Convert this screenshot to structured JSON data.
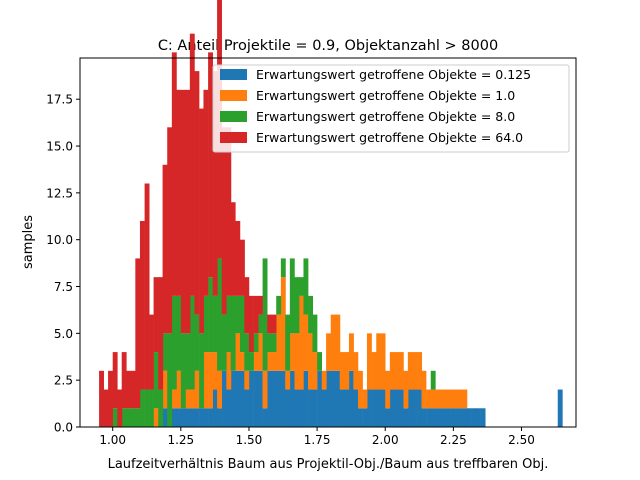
{
  "chart_data": {
    "type": "bar",
    "title": "C: Anteil Projektile = 0.9, Objektanzahl > 8000",
    "xlabel": "Laufzeitverhältnis Baum aus Projektil-Obj./Baum aus treffbaren Obj.",
    "ylabel": "samples",
    "xlim": [
      0.88,
      2.7
    ],
    "ylim": [
      0,
      19.7
    ],
    "xticks": [
      1.0,
      1.25,
      1.5,
      1.75,
      2.0,
      2.25,
      2.5
    ],
    "xtick_labels": [
      "1.00",
      "1.25",
      "1.50",
      "1.75",
      "2.00",
      "2.25",
      "2.50"
    ],
    "yticks": [
      0.0,
      2.5,
      5.0,
      7.5,
      10.0,
      12.5,
      15.0,
      17.5
    ],
    "ytick_labels": [
      "0.0",
      "2.5",
      "5.0",
      "7.5",
      "10.0",
      "12.5",
      "15.0",
      "17.5"
    ],
    "legend_position": "top-right",
    "stacked": true,
    "bin_width": 0.0167,
    "series": [
      {
        "name": "Erwartungswert getroffene Objekte = 0.125",
        "color": "#1f77b4",
        "bins": [
          [
            1.183,
            1
          ],
          [
            1.217,
            1
          ],
          [
            1.233,
            1
          ],
          [
            1.25,
            1
          ],
          [
            1.267,
            1
          ],
          [
            1.283,
            1
          ],
          [
            1.3,
            1
          ],
          [
            1.317,
            1
          ],
          [
            1.333,
            1
          ],
          [
            1.35,
            1
          ],
          [
            1.367,
            2
          ],
          [
            1.383,
            1
          ],
          [
            1.4,
            3
          ],
          [
            1.417,
            2
          ],
          [
            1.433,
            3
          ],
          [
            1.45,
            3
          ],
          [
            1.467,
            3
          ],
          [
            1.483,
            2
          ],
          [
            1.5,
            3
          ],
          [
            1.517,
            3
          ],
          [
            1.533,
            3
          ],
          [
            1.55,
            1
          ],
          [
            1.567,
            3
          ],
          [
            1.583,
            3
          ],
          [
            1.6,
            3
          ],
          [
            1.617,
            3
          ],
          [
            1.633,
            2
          ],
          [
            1.65,
            3
          ],
          [
            1.667,
            2
          ],
          [
            1.683,
            2
          ],
          [
            1.7,
            3
          ],
          [
            1.717,
            2
          ],
          [
            1.733,
            2
          ],
          [
            1.75,
            3
          ],
          [
            1.767,
            2
          ],
          [
            1.783,
            3
          ],
          [
            1.8,
            3
          ],
          [
            1.817,
            3
          ],
          [
            1.833,
            2
          ],
          [
            1.85,
            2
          ],
          [
            1.867,
            3
          ],
          [
            1.883,
            2
          ],
          [
            1.9,
            1
          ],
          [
            1.917,
            1
          ],
          [
            1.933,
            2
          ],
          [
            1.95,
            2
          ],
          [
            1.967,
            2
          ],
          [
            1.983,
            2
          ],
          [
            2.0,
            1
          ],
          [
            2.017,
            2
          ],
          [
            2.033,
            2
          ],
          [
            2.05,
            2
          ],
          [
            2.067,
            1
          ],
          [
            2.083,
            2
          ],
          [
            2.1,
            2
          ],
          [
            2.117,
            2
          ],
          [
            2.133,
            1
          ],
          [
            2.15,
            1
          ],
          [
            2.167,
            1
          ],
          [
            2.183,
            1
          ],
          [
            2.2,
            1
          ],
          [
            2.217,
            1
          ],
          [
            2.233,
            1
          ],
          [
            2.25,
            1
          ],
          [
            2.267,
            1
          ],
          [
            2.283,
            1
          ],
          [
            2.3,
            1
          ],
          [
            2.317,
            1
          ],
          [
            2.333,
            1
          ],
          [
            2.35,
            1
          ],
          [
            2.633,
            2
          ]
        ]
      },
      {
        "name": "Erwartungswert getroffene Objekte = 1.0",
        "color": "#ff7f0e",
        "bins": [
          [
            1.15,
            1
          ],
          [
            1.183,
            2
          ],
          [
            1.217,
            1
          ],
          [
            1.233,
            2
          ],
          [
            1.267,
            1
          ],
          [
            1.283,
            1
          ],
          [
            1.3,
            2
          ],
          [
            1.333,
            3
          ],
          [
            1.35,
            3
          ],
          [
            1.367,
            2
          ],
          [
            1.383,
            2
          ],
          [
            1.417,
            2
          ],
          [
            1.45,
            2
          ],
          [
            1.467,
            1
          ],
          [
            1.483,
            1
          ],
          [
            1.517,
            1
          ],
          [
            1.533,
            2
          ],
          [
            1.55,
            2
          ],
          [
            1.567,
            1
          ],
          [
            1.583,
            1
          ],
          [
            1.6,
            3
          ],
          [
            1.617,
            5
          ],
          [
            1.633,
            1
          ],
          [
            1.65,
            2
          ],
          [
            1.667,
            3
          ],
          [
            1.683,
            5
          ],
          [
            1.7,
            3
          ],
          [
            1.717,
            3
          ],
          [
            1.733,
            2
          ],
          [
            1.767,
            1
          ],
          [
            1.783,
            2
          ],
          [
            1.8,
            3
          ],
          [
            1.817,
            3
          ],
          [
            1.833,
            2
          ],
          [
            1.85,
            2
          ],
          [
            1.867,
            2
          ],
          [
            1.883,
            2
          ],
          [
            1.9,
            2
          ],
          [
            1.917,
            1
          ],
          [
            1.933,
            3
          ],
          [
            1.95,
            2
          ],
          [
            1.967,
            3
          ],
          [
            1.983,
            3
          ],
          [
            2.0,
            2
          ],
          [
            2.017,
            2
          ],
          [
            2.033,
            2
          ],
          [
            2.05,
            2
          ],
          [
            2.067,
            2
          ],
          [
            2.083,
            2
          ],
          [
            2.1,
            2
          ],
          [
            2.117,
            2
          ],
          [
            2.133,
            2
          ],
          [
            2.15,
            1
          ],
          [
            2.167,
            1
          ],
          [
            2.183,
            1
          ],
          [
            2.2,
            1
          ],
          [
            2.217,
            1
          ],
          [
            2.233,
            1
          ],
          [
            2.25,
            1
          ],
          [
            2.267,
            1
          ],
          [
            2.283,
            1
          ]
        ]
      },
      {
        "name": "Erwartungswert getroffene Objekte = 8.0",
        "color": "#2ca02c",
        "bins": [
          [
            1.0,
            1
          ],
          [
            1.033,
            1
          ],
          [
            1.05,
            1
          ],
          [
            1.067,
            1
          ],
          [
            1.083,
            1
          ],
          [
            1.1,
            2
          ],
          [
            1.117,
            2
          ],
          [
            1.133,
            2
          ],
          [
            1.15,
            3
          ],
          [
            1.167,
            2
          ],
          [
            1.183,
            2
          ],
          [
            1.2,
            5
          ],
          [
            1.217,
            5
          ],
          [
            1.233,
            4
          ],
          [
            1.25,
            4
          ],
          [
            1.267,
            3
          ],
          [
            1.283,
            5
          ],
          [
            1.3,
            3
          ],
          [
            1.317,
            4
          ],
          [
            1.333,
            3
          ],
          [
            1.35,
            4
          ],
          [
            1.367,
            3
          ],
          [
            1.383,
            6
          ],
          [
            1.4,
            3
          ],
          [
            1.417,
            3
          ],
          [
            1.433,
            4
          ],
          [
            1.45,
            2
          ],
          [
            1.467,
            3
          ],
          [
            1.483,
            2
          ],
          [
            1.5,
            1
          ],
          [
            1.517,
            1
          ],
          [
            1.533,
            1
          ],
          [
            1.55,
            6
          ],
          [
            1.567,
            1
          ],
          [
            1.583,
            1
          ],
          [
            1.6,
            1
          ],
          [
            1.617,
            1
          ],
          [
            1.633,
            3
          ],
          [
            1.65,
            4
          ],
          [
            1.667,
            3
          ],
          [
            1.683,
            1
          ],
          [
            1.7,
            3
          ],
          [
            1.717,
            2
          ],
          [
            1.733,
            2
          ],
          [
            1.75,
            1
          ],
          [
            2.167,
            1
          ]
        ]
      },
      {
        "name": "Erwartungswert getroffene Objekte = 64.0",
        "color": "#d62728",
        "bins": [
          [
            0.95,
            3
          ],
          [
            0.967,
            2
          ],
          [
            0.983,
            3
          ],
          [
            1.0,
            3
          ],
          [
            1.017,
            2
          ],
          [
            1.033,
            3
          ],
          [
            1.05,
            2
          ],
          [
            1.067,
            2
          ],
          [
            1.083,
            8
          ],
          [
            1.1,
            9
          ],
          [
            1.117,
            11
          ],
          [
            1.133,
            4
          ],
          [
            1.15,
            4
          ],
          [
            1.167,
            6
          ],
          [
            1.183,
            9
          ],
          [
            1.2,
            11
          ],
          [
            1.217,
            13
          ],
          [
            1.233,
            11
          ],
          [
            1.25,
            13
          ],
          [
            1.267,
            13
          ],
          [
            1.283,
            14
          ],
          [
            1.3,
            13
          ],
          [
            1.317,
            12
          ],
          [
            1.333,
            11
          ],
          [
            1.35,
            12
          ],
          [
            1.367,
            12
          ],
          [
            1.383,
            15
          ],
          [
            1.4,
            10
          ],
          [
            1.417,
            9
          ],
          [
            1.433,
            5
          ],
          [
            1.45,
            4
          ],
          [
            1.467,
            3
          ],
          [
            1.483,
            3
          ],
          [
            1.5,
            3
          ],
          [
            1.517,
            2
          ],
          [
            1.533,
            1
          ],
          [
            1.567,
            1
          ],
          [
            1.583,
            1
          ]
        ]
      }
    ]
  }
}
